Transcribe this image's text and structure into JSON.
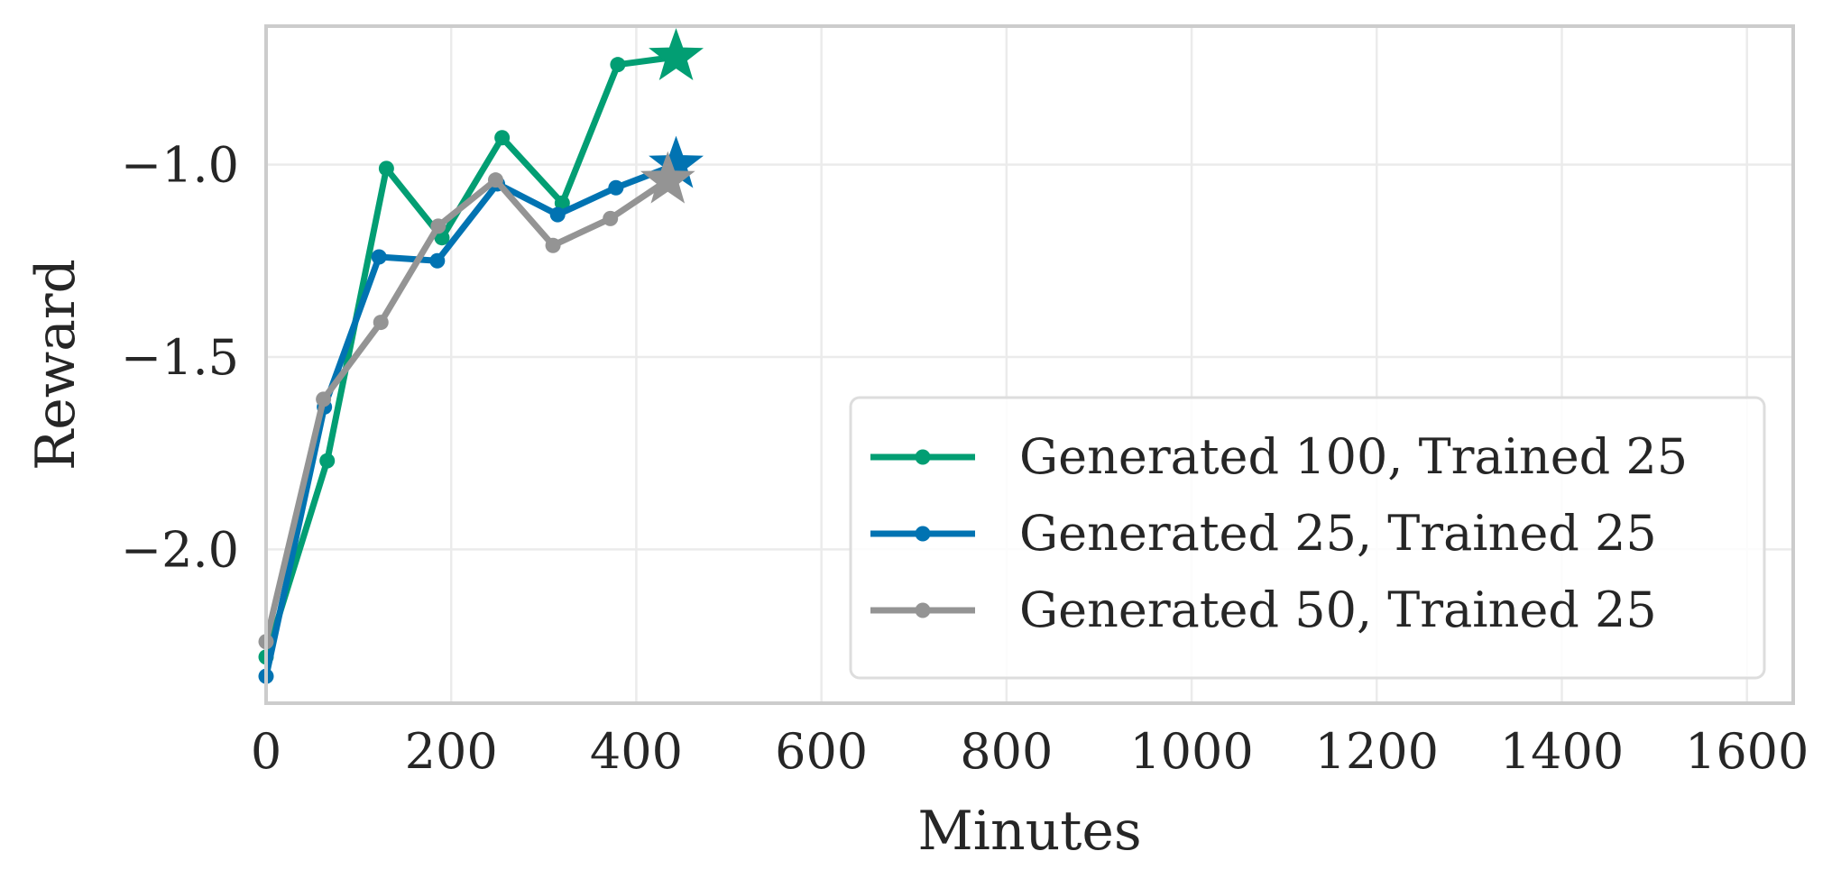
{
  "chart_data": {
    "type": "line",
    "xlabel": "Minutes",
    "ylabel": "Reward",
    "xlim": [
      0,
      1650
    ],
    "ylim": [
      -2.4,
      -0.64
    ],
    "x_ticks": [
      0,
      200,
      400,
      600,
      800,
      1000,
      1200,
      1400,
      1600
    ],
    "x_tick_labels": [
      "0",
      "200",
      "400",
      "600",
      "800",
      "1000",
      "1200",
      "1400",
      "1600"
    ],
    "y_ticks": [
      -2.0,
      -1.5,
      -1.0
    ],
    "y_tick_labels": [
      "−2.0",
      "−1.5",
      "−1.0"
    ],
    "grid": true,
    "legend_position": "lower-right",
    "series": [
      {
        "name": "Generated 100, Trained 25",
        "color": "#029e73",
        "x": [
          0,
          66,
          130,
          190,
          255,
          320,
          380,
          443
        ],
        "y": [
          -2.28,
          -1.77,
          -1.01,
          -1.19,
          -0.93,
          -1.1,
          -0.74,
          -0.72
        ],
        "final_marker": "star"
      },
      {
        "name": "Generated 25, Trained 25",
        "color": "#0173b2",
        "x": [
          0,
          63,
          122,
          185,
          250,
          315,
          378,
          443
        ],
        "y": [
          -2.33,
          -1.63,
          -1.24,
          -1.25,
          -1.05,
          -1.13,
          -1.06,
          -1.0
        ],
        "final_marker": "star"
      },
      {
        "name": "Generated 50, Trained 25",
        "color": "#949494",
        "x": [
          0,
          62,
          124,
          186,
          248,
          310,
          372,
          434
        ],
        "y": [
          -2.24,
          -1.61,
          -1.41,
          -1.16,
          -1.04,
          -1.21,
          -1.14,
          -1.04
        ],
        "final_marker": "star"
      }
    ]
  }
}
